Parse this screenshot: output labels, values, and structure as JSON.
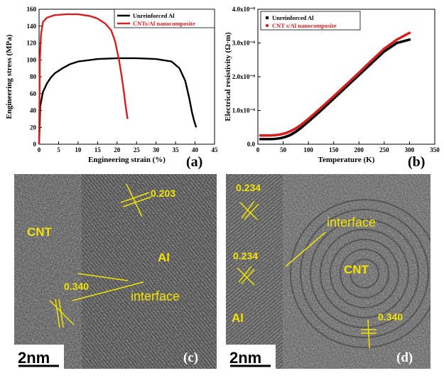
{
  "panels": {
    "a": {
      "label": "(a)"
    },
    "b": {
      "label": "(b)"
    },
    "c": {
      "label": "(c)",
      "scale_bar": "2nm",
      "annotations": {
        "cnt": "CNT",
        "al": "Al",
        "interface": "interface",
        "d1": "0.203",
        "d2": "0.340"
      }
    },
    "d": {
      "label": "(d)",
      "scale_bar": "2nm",
      "annotations": {
        "cnt": "CNT",
        "al": "Al",
        "interface": "interface",
        "d1": "0.234",
        "d2": "0.234",
        "d3": "0.340"
      }
    }
  },
  "colors": {
    "unreinforced": "#000000",
    "composite": "#d42020",
    "annotation": "#f2e400"
  },
  "chart_data": [
    {
      "type": "line",
      "xlabel": "Engineering strain (%)",
      "ylabel": "Engineering stress (MPa)",
      "xlim": [
        0,
        45
      ],
      "ylim": [
        0,
        160
      ],
      "xticks": [
        "0",
        "5",
        "10",
        "15",
        "20",
        "25",
        "30",
        "35",
        "40",
        "45"
      ],
      "yticks": [
        "0",
        "20",
        "40",
        "60",
        "80",
        "100",
        "120",
        "140",
        "160"
      ],
      "legend_position": "top-right",
      "series": [
        {
          "name": "Unreinforced Al",
          "color": "#000000",
          "x": [
            0,
            0.3,
            1,
            2,
            3,
            4,
            6,
            8,
            10,
            15,
            20,
            25,
            30,
            34,
            36,
            37.5,
            38.5,
            39.2,
            39.8,
            40.3
          ],
          "y": [
            0,
            45,
            62,
            72,
            79,
            84,
            90,
            95,
            98,
            101,
            102,
            102,
            101,
            98,
            90,
            75,
            55,
            38,
            27,
            20
          ]
        },
        {
          "name": "CNTs/Al nanocomposite",
          "color": "#d42020",
          "x": [
            0,
            0.2,
            0.5,
            1,
            2,
            4,
            7,
            10,
            13,
            15,
            17,
            18.5,
            19.5,
            20.5,
            21.2,
            21.8,
            22.3,
            22.7
          ],
          "y": [
            0,
            100,
            130,
            145,
            150,
            153,
            154,
            154,
            152,
            149,
            143,
            135,
            122,
            100,
            80,
            60,
            42,
            30
          ]
        }
      ]
    },
    {
      "type": "scatter",
      "xlabel": "Temperature (K)",
      "ylabel": "Electrical resistivity (Ω·m)",
      "xlim": [
        0,
        350
      ],
      "ylim": [
        0,
        4e-08
      ],
      "xticks": [
        "0",
        "50",
        "100",
        "150",
        "200",
        "250",
        "300",
        "350"
      ],
      "yticks": [
        "0.0",
        "1.0x10⁻⁸",
        "2.0x10⁻⁸",
        "3.0x10⁻⁸",
        "4.0x10⁻⁸"
      ],
      "legend_position": "top-left",
      "series": [
        {
          "name": "Unreinforced Al",
          "color": "#000000",
          "x": [
            5,
            15,
            25,
            35,
            45,
            55,
            65,
            75,
            85,
            100,
            125,
            150,
            175,
            200,
            225,
            250,
            275,
            300
          ],
          "y": [
            1.5e-09,
            1.5e-09,
            1.5e-09,
            1.6e-09,
            1.8e-09,
            2.2e-09,
            2.8e-09,
            3.7e-09,
            4.8e-09,
            6.7e-09,
            1e-08,
            1.35e-08,
            1.7e-08,
            2.05e-08,
            2.4e-08,
            2.75e-08,
            3e-08,
            3.1e-08
          ]
        },
        {
          "name": "CNT s/Al nanocomposite",
          "color": "#d42020",
          "x": [
            5,
            15,
            25,
            35,
            45,
            55,
            65,
            75,
            85,
            100,
            125,
            150,
            175,
            200,
            225,
            250,
            275,
            300
          ],
          "y": [
            2.6e-09,
            2.6e-09,
            2.6e-09,
            2.7e-09,
            2.9e-09,
            3.3e-09,
            3.9e-09,
            4.7e-09,
            5.7e-09,
            7.5e-09,
            1.08e-08,
            1.42e-08,
            1.77e-08,
            2.12e-08,
            2.48e-08,
            2.83e-08,
            3.1e-08,
            3.3e-08
          ]
        }
      ]
    }
  ]
}
